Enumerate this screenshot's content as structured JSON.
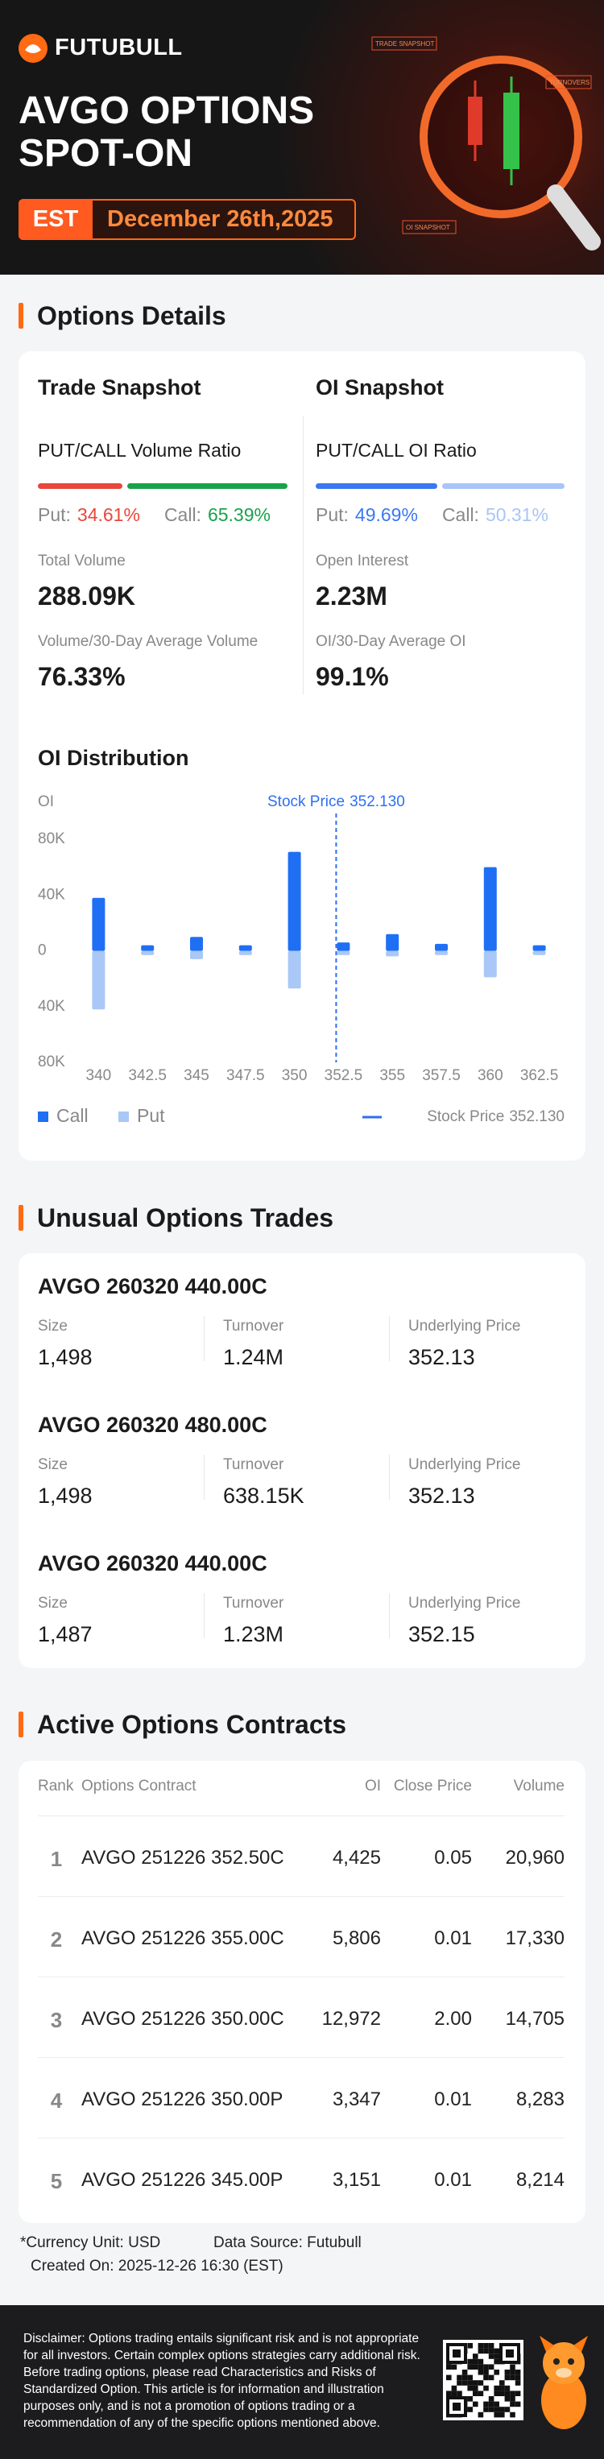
{
  "header": {
    "brand": "FUTUBULL",
    "title_lines": [
      "AVGO OPTIONS",
      "SPOT-ON"
    ],
    "timezone": "EST",
    "date": "December 26th,2025",
    "decor_labels": [
      "TRADE SNAPSHOT",
      "TURNOVERS",
      "OI SNAPSHOT"
    ]
  },
  "options_details": {
    "title": "Options Details",
    "trade_snapshot": {
      "title": "Trade Snapshot",
      "ratio_title": "PUT/CALL Volume Ratio",
      "put_label": "Put:",
      "put": {
        "value": 34.61,
        "label": "34.61%"
      },
      "call_label": "Call:",
      "call": {
        "value": 65.39,
        "label": "65.39%"
      },
      "put_color": "#e8473b",
      "call_color": "#18a34a",
      "metrics": [
        {
          "label": "Total Volume",
          "value": "288.09K"
        },
        {
          "label": "Volume/30-Day Average Volume",
          "value": "76.33%"
        }
      ]
    },
    "oi_snapshot": {
      "title": "OI Snapshot",
      "ratio_title": "PUT/CALL OI Ratio",
      "put_label": "Put:",
      "put": {
        "value": 49.69,
        "label": "49.69%"
      },
      "call_label": "Call:",
      "call": {
        "value": 50.31,
        "label": "50.31%"
      },
      "put_color": "#3a78f0",
      "call_color": "#a9c5f7",
      "metrics": [
        {
          "label": "Open Interest",
          "value": "2.23M"
        },
        {
          "label": "OI/30-Day Average OI",
          "value": "99.1%"
        }
      ]
    }
  },
  "chart_data": {
    "type": "bar",
    "title": "OI Distribution",
    "y_label": "OI",
    "categories": [
      340,
      342.5,
      345,
      347.5,
      350,
      352.5,
      355,
      357.5,
      360,
      362.5
    ],
    "series": [
      {
        "name": "Call",
        "color": "#1f6ff5",
        "values": [
          38000,
          4000,
          10000,
          4000,
          71000,
          6000,
          12000,
          5000,
          60000,
          4000
        ]
      },
      {
        "name": "Put",
        "color": "#a9c8f7",
        "values": [
          -42000,
          -3000,
          -6000,
          -3000,
          -27000,
          -3000,
          -4000,
          -3000,
          -19000,
          -3000
        ]
      }
    ],
    "ylim": [
      -80000,
      80000
    ],
    "yticks": [
      {
        "value": 80000,
        "label": "80K"
      },
      {
        "value": 40000,
        "label": "40K"
      },
      0,
      {
        "value": -40000,
        "label": "40K"
      },
      {
        "value": -80000,
        "label": "80K"
      }
    ],
    "grid": false,
    "stock_price_label": "Stock Price",
    "stock_price": {
      "value": 352.13,
      "label": "352.130"
    },
    "stock_price_color": "#2f6fed"
  },
  "unusual_trades": {
    "title": "Unusual Options Trades",
    "trades": [
      {
        "contract": "AVGO 260320 440.00C",
        "fields": [
          {
            "label": "Size",
            "value": "1,498"
          },
          {
            "label": "Turnover",
            "value": "1.24M"
          },
          {
            "label": "Underlying Price",
            "value": "352.13"
          }
        ]
      },
      {
        "contract": "AVGO 260320 480.00C",
        "fields": [
          {
            "label": "Size",
            "value": "1,498"
          },
          {
            "label": "Turnover",
            "value": "638.15K"
          },
          {
            "label": "Underlying Price",
            "value": "352.13"
          }
        ]
      },
      {
        "contract": "AVGO 260320 440.00C",
        "fields": [
          {
            "label": "Size",
            "value": "1,487"
          },
          {
            "label": "Turnover",
            "value": "1.23M"
          },
          {
            "label": "Underlying Price",
            "value": "352.15"
          }
        ]
      }
    ]
  },
  "active_contracts": {
    "title": "Active Options Contracts",
    "columns": [
      "Rank",
      "Options Contract",
      "OI",
      "Close Price",
      "Volume"
    ],
    "rows": [
      [
        "1",
        "AVGO 251226 352.50C",
        "4,425",
        "0.05",
        "20,960"
      ],
      [
        "2",
        "AVGO 251226 355.00C",
        "5,806",
        "0.01",
        "17,330"
      ],
      [
        "3",
        "AVGO 251226 350.00C",
        "12,972",
        "2.00",
        "14,705"
      ],
      [
        "4",
        "AVGO 251226 350.00P",
        "3,347",
        "0.01",
        "8,283"
      ],
      [
        "5",
        "AVGO 251226 345.00P",
        "3,151",
        "0.01",
        "8,214"
      ]
    ]
  },
  "footnotes": {
    "currency": "*Currency Unit: USD",
    "source": "Data Source: Futubull",
    "created": "Created On: 2025-12-26 16:30 (EST)"
  },
  "disclaimer": "Disclaimer: Options trading entails significant risk and is not appropriate for all investors. Certain complex options strategies carry additional risk. Before trading options, please read Characteristics and Risks of Standardized Option. This article is for information and illustration purposes only, and is not a promotion of options trading or a recommendation of any of the specific options mentioned above."
}
